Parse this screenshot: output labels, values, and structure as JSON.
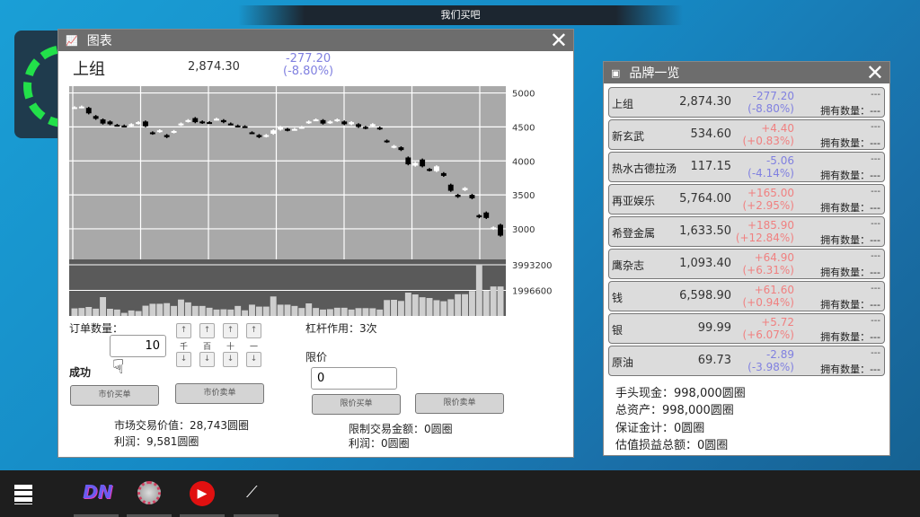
{
  "topbar": {
    "title": "我们买吧"
  },
  "chart_window": {
    "title": "图表",
    "icon": "line-chart-icon",
    "stock_name": "上组",
    "price": "2,874.30",
    "change": "-277.20",
    "change_pct": "(-8.80%)",
    "order_qty_label": "订单数量：",
    "order_qty": "10",
    "steppers": [
      {
        "label": "千"
      },
      {
        "label": "百"
      },
      {
        "label": "十"
      },
      {
        "label": "一"
      }
    ],
    "up_glyph": "↑",
    "down_glyph": "↓",
    "status": "成功",
    "market_buy": "市价买单",
    "market_sell": "市价卖单",
    "market_value": "市场交易价值：28,743圆圈",
    "market_profit": "利润：9,581圆圈",
    "leverage": "杠杆作用：3次",
    "limit_label": "限价",
    "limit_value": "0",
    "limit_buy": "限价买单",
    "limit_sell": "限价卖单",
    "limit_amount": "限制交易金额：0圆圈",
    "limit_profit": "利润：0圆圈"
  },
  "chart_data": {
    "type": "candlestick",
    "price_ticks": [
      5000,
      4500,
      4000,
      3500,
      3000
    ],
    "price_range": [
      2550,
      5100
    ],
    "volume_ticks": [
      3993200,
      1996600
    ],
    "volume_range": [
      0,
      3993200
    ],
    "close": [
      4790,
      4800,
      4700,
      4620,
      4550,
      4540,
      4520,
      4515,
      4540,
      4570,
      4510,
      4400,
      4450,
      4350,
      4440,
      4550,
      4600,
      4570,
      4560,
      4560,
      4620,
      4570,
      4540,
      4510,
      4500,
      4410,
      4350,
      4380,
      4450,
      4500,
      4450,
      4470,
      4500,
      4580,
      4610,
      4550,
      4580,
      4610,
      4540,
      4570,
      4500,
      4480,
      4540,
      4470,
      4280,
      4220,
      4160,
      3950,
      3970,
      3920,
      3860,
      3920,
      3780,
      3560,
      3470,
      3600,
      3450,
      3170,
      3160,
      3020,
      2900
    ],
    "open": [
      4780,
      4790,
      4780,
      4660,
      4610,
      4580,
      4530,
      4520,
      4515,
      4550,
      4580,
      4420,
      4430,
      4380,
      4420,
      4530,
      4580,
      4630,
      4580,
      4570,
      4610,
      4600,
      4550,
      4520,
      4510,
      4420,
      4380,
      4360,
      4400,
      4460,
      4470,
      4460,
      4490,
      4560,
      4600,
      4600,
      4560,
      4590,
      4580,
      4540,
      4540,
      4500,
      4520,
      4490,
      4300,
      4200,
      4200,
      4050,
      3930,
      4020,
      3880,
      3850,
      3820,
      3650,
      3500,
      3570,
      3500,
      3200,
      3240,
      3000,
      3060
    ],
    "volume": [
      590000,
      620000,
      700000,
      570000,
      1470000,
      560000,
      500000,
      240000,
      430000,
      380000,
      800000,
      950000,
      950000,
      1000000,
      780000,
      1280000,
      1060000,
      780000,
      780000,
      640000,
      500000,
      520000,
      500000,
      780000,
      440000,
      880000,
      730000,
      730000,
      1520000,
      880000,
      880000,
      780000,
      620000,
      980000,
      620000,
      500000,
      530000,
      640000,
      640000,
      500000,
      610000,
      610000,
      600000,
      500000,
      1240000,
      1260000,
      1170000,
      1820000,
      1680000,
      1460000,
      1400000,
      1230000,
      1150000,
      1300000,
      1700000,
      1700000,
      1950000,
      3993200,
      1960000,
      2300000,
      2300000
    ]
  },
  "list_window": {
    "title": "品牌一览",
    "icon": "book-icon",
    "owned_label": "拥有数量：---",
    "owned_top": "---",
    "items": [
      {
        "name": "上组",
        "price": "2,874.30",
        "change": "-277.20",
        "pct": "(-8.80%)",
        "dir": "down"
      },
      {
        "name": "新玄武",
        "price": "534.60",
        "change": "+4.40",
        "pct": "(+0.83%)",
        "dir": "up"
      },
      {
        "name": "热水古德拉汤",
        "price": "117.15",
        "change": "-5.06",
        "pct": "(-4.14%)",
        "dir": "down"
      },
      {
        "name": "再亚娱乐",
        "price": "5,764.00",
        "change": "+165.00",
        "pct": "(+2.95%)",
        "dir": "up"
      },
      {
        "name": "希登金属",
        "price": "1,633.50",
        "change": "+185.90",
        "pct": "(+12.84%)",
        "dir": "up"
      },
      {
        "name": "鹰杂志",
        "price": "1,093.40",
        "change": "+64.90",
        "pct": "(+6.31%)",
        "dir": "up"
      },
      {
        "name": "钱",
        "price": "6,598.90",
        "change": "+61.60",
        "pct": "(+0.94%)",
        "dir": "up"
      },
      {
        "name": "银",
        "price": "99.99",
        "change": "+5.72",
        "pct": "(+6.07%)",
        "dir": "up"
      },
      {
        "name": "原油",
        "price": "69.73",
        "change": "-2.89",
        "pct": "(-3.98%)",
        "dir": "down"
      }
    ],
    "cash": "手头现金：998,000圆圈",
    "total": "总资产：998,000圆圈",
    "margin": "保证金计：0圆圈",
    "unrealized": "估值损益总额：0圆圈"
  },
  "colors": {
    "up": "#f08080",
    "down": "#8080e0",
    "titlebar": "#6d6d6d",
    "plot_bg": "#a9a9a9",
    "volume_bg": "#5a5a5a"
  },
  "taskbar": {
    "items": [
      {
        "icon": "start-menu-icon"
      },
      {
        "icon": "dn-app-icon"
      },
      {
        "icon": "gear-app-icon"
      },
      {
        "icon": "play-video-icon"
      },
      {
        "icon": "stock-chart-icon"
      }
    ]
  }
}
